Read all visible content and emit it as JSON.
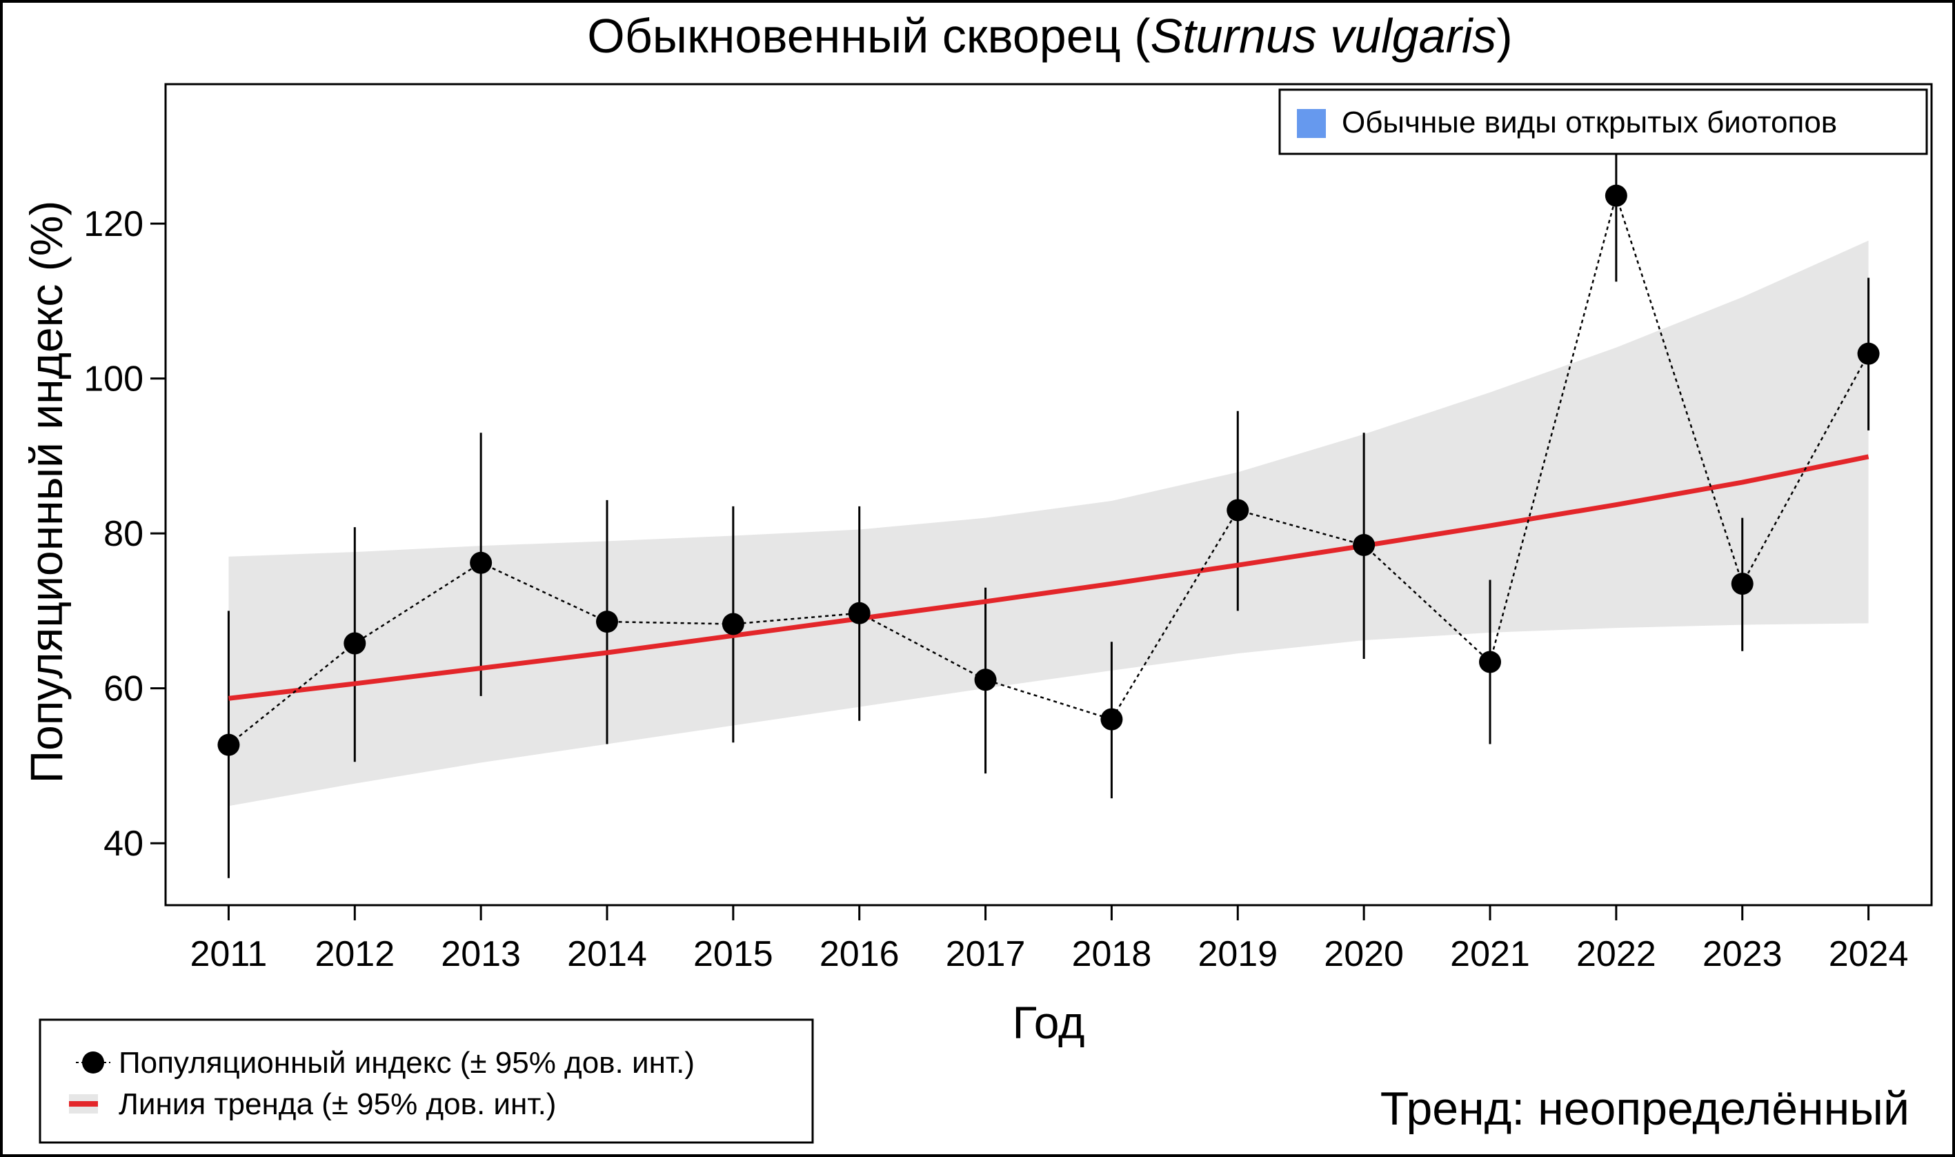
{
  "chart_data": {
    "type": "line",
    "title": {
      "prefix": "Обыкновенный скворец (",
      "species": "Sturnus vulgaris",
      "suffix": ")"
    },
    "xlabel": "Год",
    "ylabel": "Популяционный индекс (%)",
    "xlim": [
      2010.5,
      2024.5
    ],
    "ylim": [
      32,
      138
    ],
    "yticks": [
      40,
      60,
      80,
      100,
      120
    ],
    "x": [
      2011,
      2012,
      2013,
      2014,
      2015,
      2016,
      2017,
      2018,
      2019,
      2020,
      2021,
      2022,
      2023,
      2024
    ],
    "series": [
      {
        "name": "Популяционный индекс (± 95% дов. инт.)",
        "values": [
          52.7,
          65.8,
          76.2,
          68.6,
          68.3,
          69.7,
          61.1,
          56.0,
          83.0,
          78.5,
          63.4,
          123.6,
          73.5,
          103.2
        ],
        "lower": [
          35.5,
          50.5,
          59.0,
          52.8,
          53.0,
          55.8,
          49.0,
          45.8,
          70.0,
          63.8,
          52.8,
          112.5,
          64.8,
          93.3
        ],
        "upper": [
          70.0,
          80.8,
          93.0,
          84.3,
          83.5,
          83.5,
          73.0,
          66.0,
          95.8,
          93.0,
          74.0,
          129.5,
          82.0,
          113.0
        ],
        "color": "#000000"
      },
      {
        "name": "Линия тренда (± 95% дов. инт.)",
        "values": [
          58.7,
          60.6,
          62.6,
          64.6,
          66.8,
          69.0,
          71.2,
          73.5,
          75.9,
          78.4,
          81.0,
          83.7,
          86.6,
          89.9
        ],
        "lower": [
          44.8,
          47.7,
          50.4,
          52.8,
          55.2,
          57.6,
          60.0,
          62.3,
          64.5,
          66.2,
          67.2,
          67.8,
          68.2,
          68.4
        ],
        "upper": [
          77.0,
          77.6,
          78.4,
          79.0,
          79.7,
          80.5,
          82.0,
          84.2,
          87.9,
          92.8,
          98.2,
          104.0,
          110.5,
          117.8
        ],
        "color": "#e3262a",
        "band_color": "#e6e6e6"
      }
    ],
    "box_legend": {
      "label": "Обычные виды открытых биотопов",
      "color": "#6699ee"
    },
    "trend_label": "Тренд: неопределённый",
    "grid": false,
    "legend_position": "bottom-left"
  }
}
